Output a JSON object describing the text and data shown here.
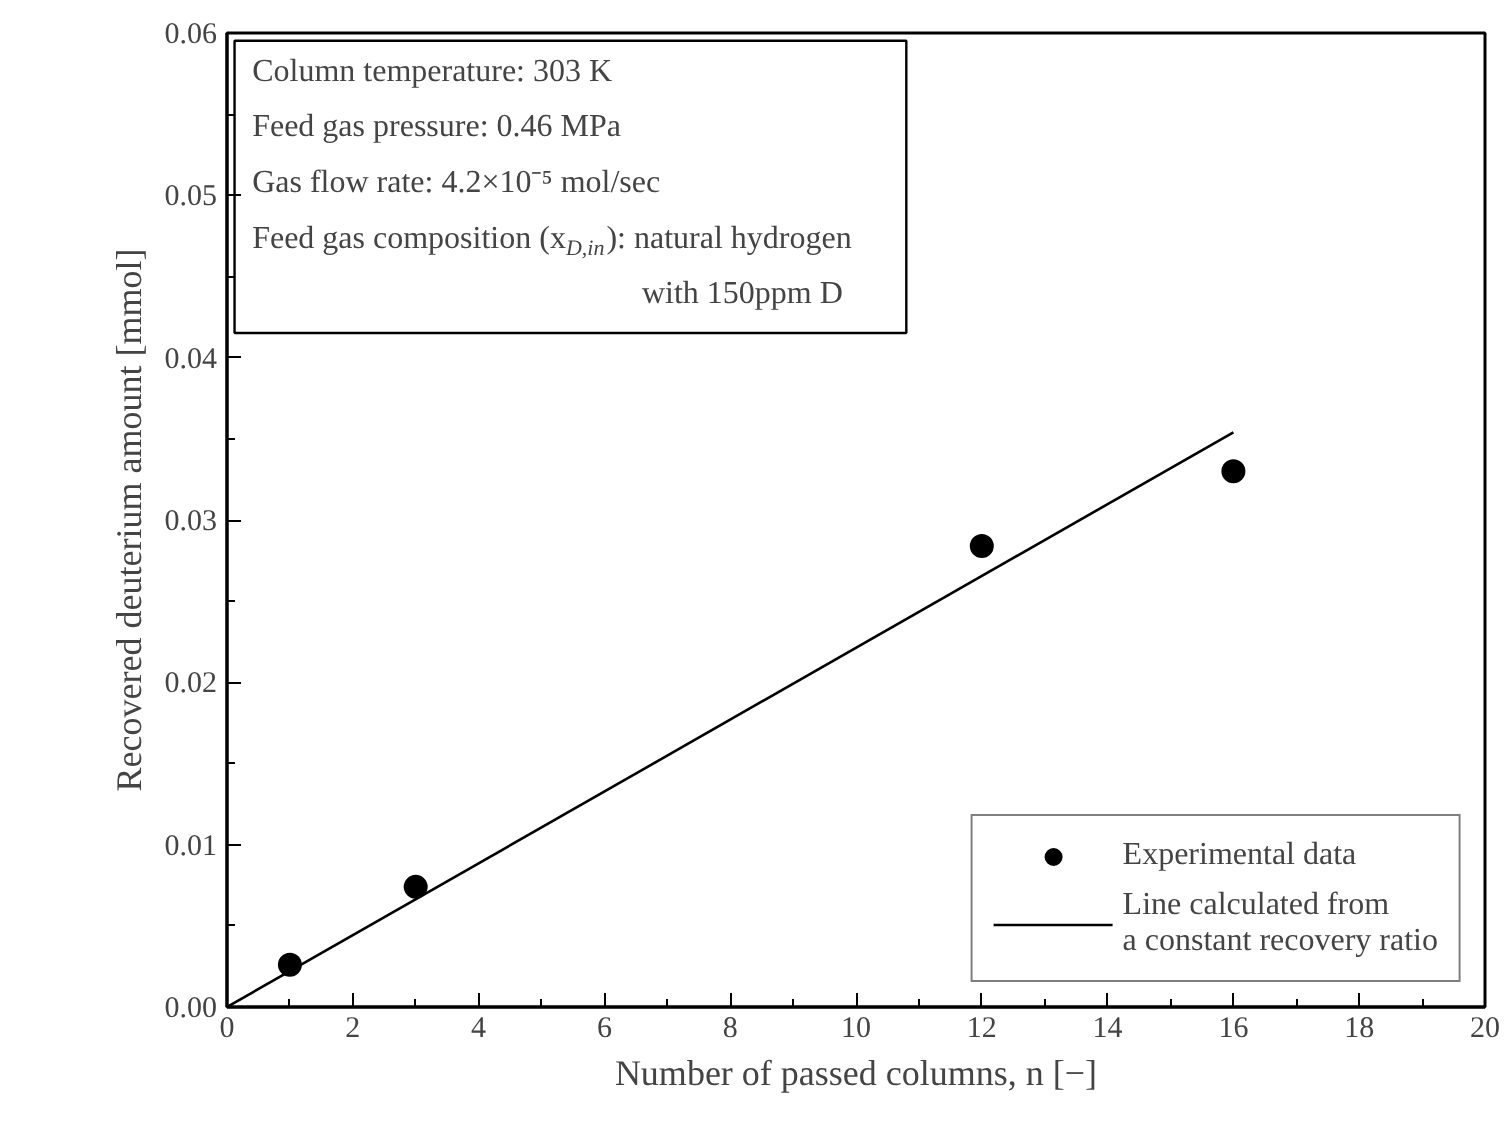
{
  "chart_data": {
    "type": "scatter",
    "xlabel": "Number of passed columns, n [−]",
    "ylabel": "Recovered deuterium amount [mmol]",
    "xlim": [
      0,
      20
    ],
    "xticks": [
      0,
      2,
      4,
      6,
      8,
      10,
      12,
      14,
      16,
      18,
      20
    ],
    "ylim": [
      0,
      0.06
    ],
    "yticks": [
      {
        "value": 0,
        "label": "0.00"
      },
      {
        "value": 0.01,
        "label": "0.01"
      },
      {
        "value": 0.02,
        "label": "0.02"
      },
      {
        "value": 0.03,
        "label": "0.03"
      },
      {
        "value": 0.04,
        "label": "0.04"
      },
      {
        "value": 0.05,
        "label": "0.05"
      },
      {
        "value": 0.06,
        "label": "0.06"
      }
    ],
    "series": [
      {
        "name": "Experimental data",
        "color": "#000000",
        "marker": "circle",
        "x": [
          1,
          3,
          12,
          16
        ],
        "values": [
          0.0026,
          0.0074,
          0.0284,
          0.033
        ]
      },
      {
        "name": "Line calculated from\na constant recovery ratio",
        "type": "line",
        "color": "#000000",
        "line_style": "solid",
        "x": [
          0,
          16
        ],
        "values": [
          0,
          0.0354
        ]
      }
    ],
    "annotations": [
      "Column temperature:  303 K",
      "Feed gas pressure:  0.46 MPa",
      "Gas flow rate:  4.2×10⁻⁵ mol/sec",
      "Feed gas composition (x$_{D,in}$):  natural hydrogen",
      "with 150ppm D"
    ],
    "legend": "bottom right",
    "grid": false
  }
}
